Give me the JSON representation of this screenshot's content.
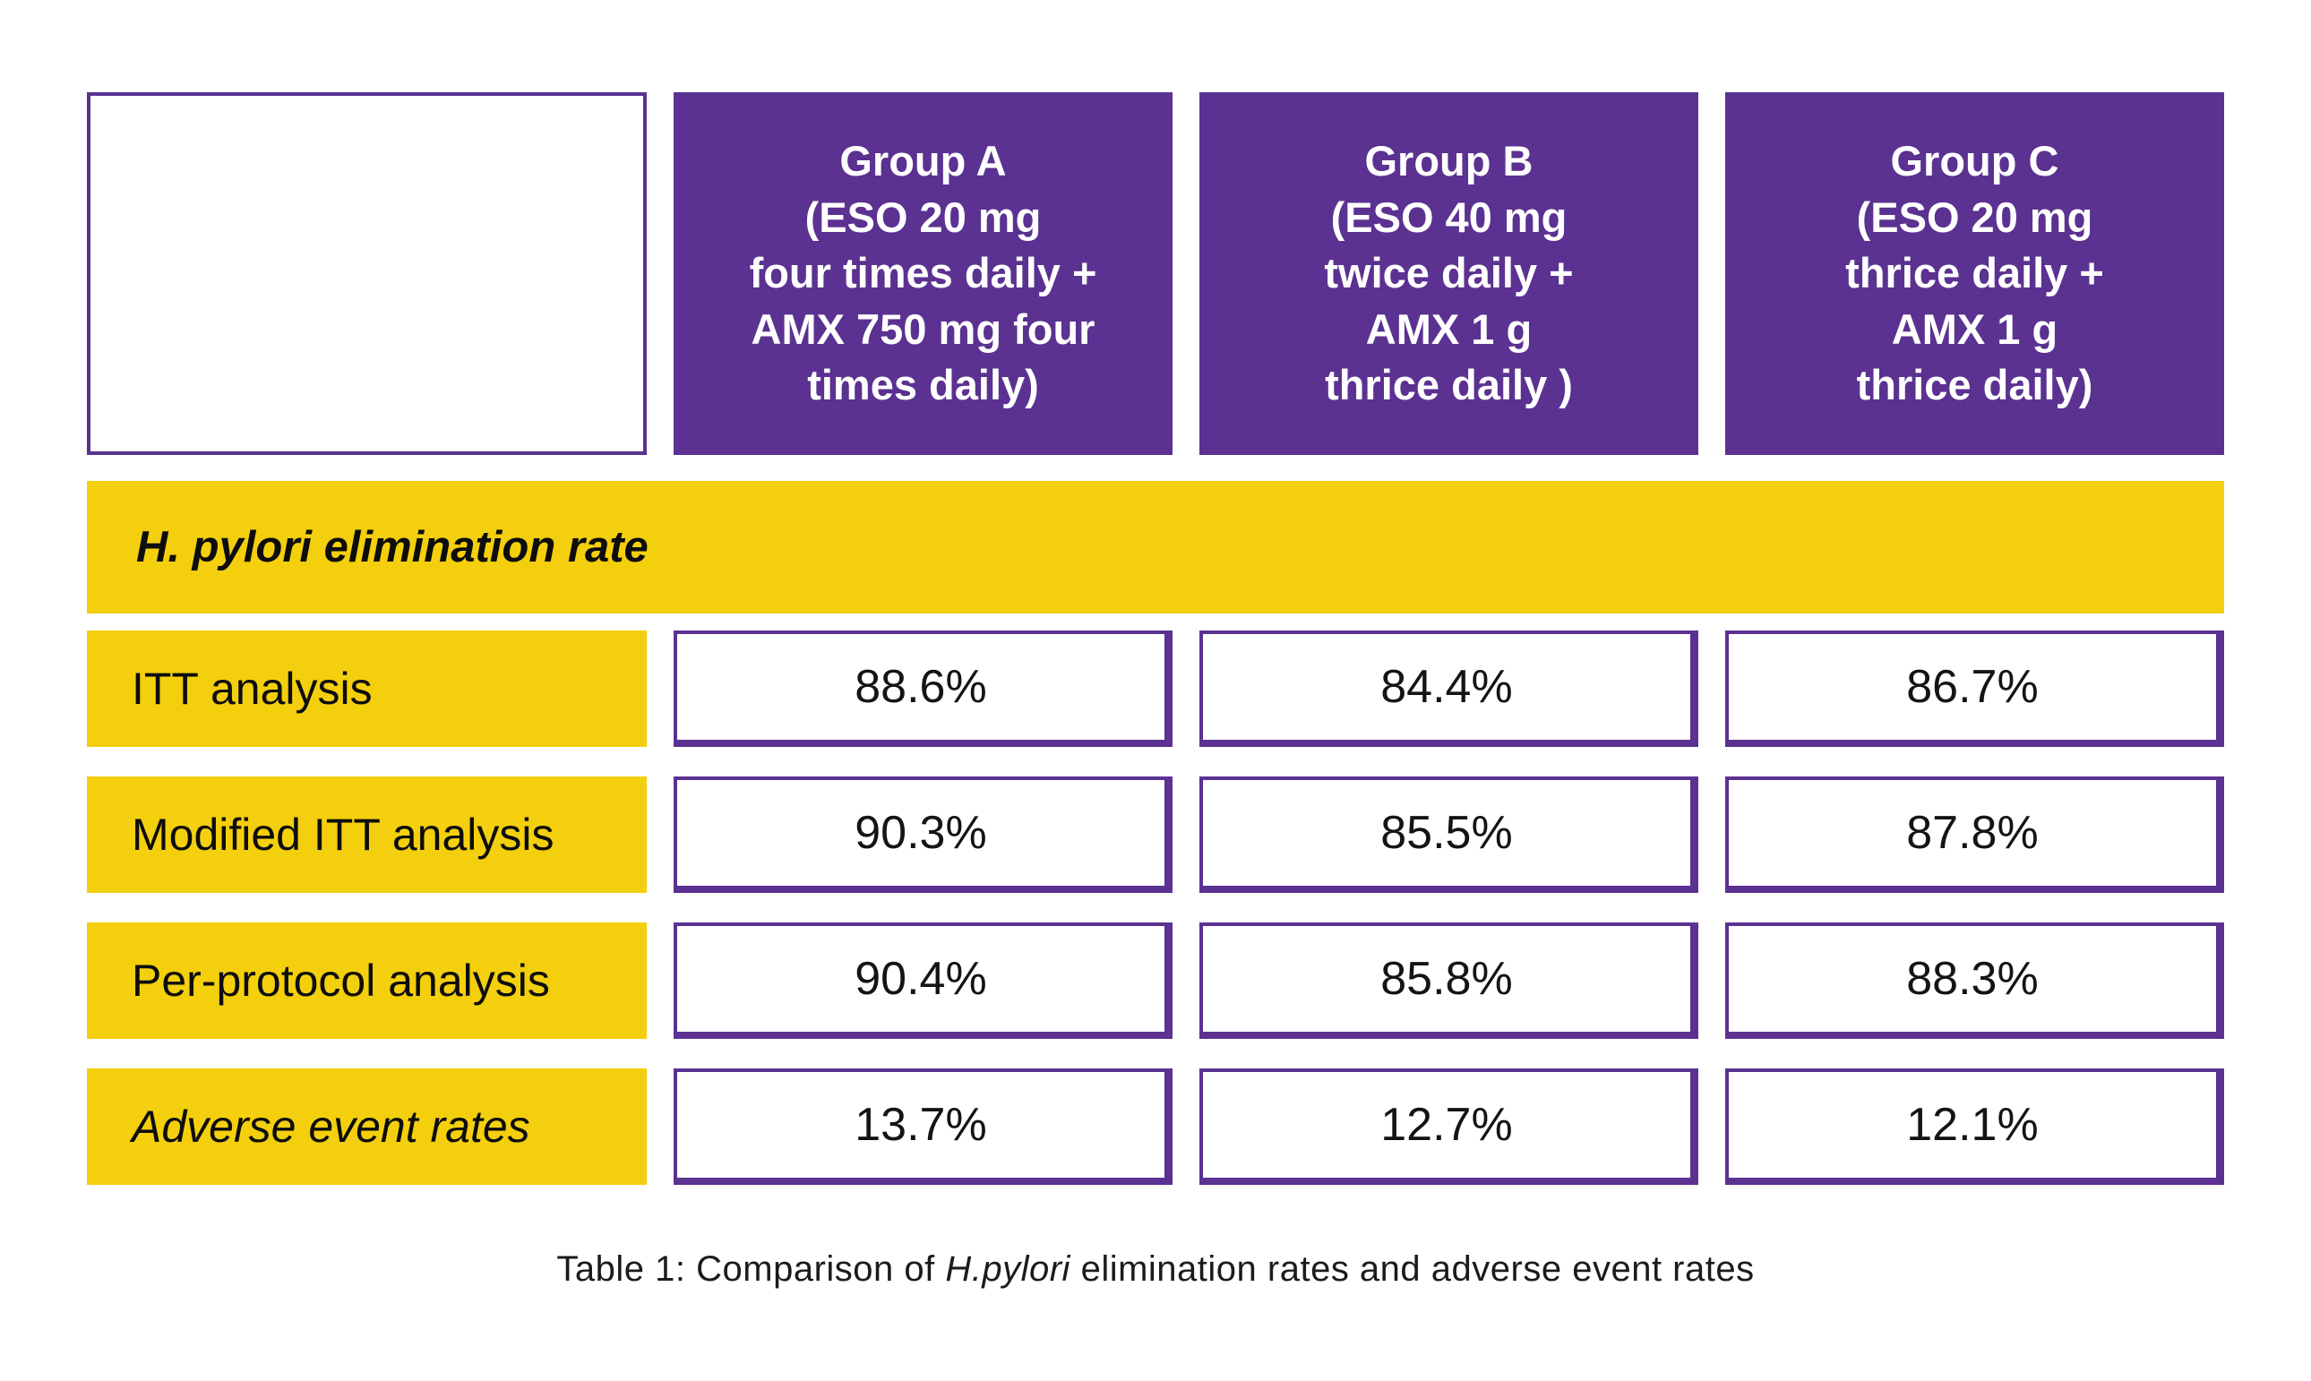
{
  "colors": {
    "purple": "#5B3191",
    "yellow": "#F4CF0D"
  },
  "header": {
    "groups": [
      {
        "title": "Group A\n(ESO 20 mg\nfour times daily +\nAMX 750 mg four\ntimes daily)"
      },
      {
        "title": "Group B\n(ESO 40 mg\ntwice daily +\nAMX 1 g\nthrice daily )"
      },
      {
        "title": "Group C\n(ESO 20 mg\nthrice daily +\nAMX 1 g\nthrice daily)"
      }
    ]
  },
  "section": {
    "title": "H. pylori elimination rate"
  },
  "rows": [
    {
      "label": "ITT analysis",
      "values": [
        "88.6%",
        "84.4%",
        "86.7%"
      ]
    },
    {
      "label": "Modified ITT analysis",
      "values": [
        "90.3%",
        "85.5%",
        "87.8%"
      ]
    },
    {
      "label": "Per-protocol analysis",
      "values": [
        "90.4%",
        "85.8%",
        "88.3%"
      ]
    },
    {
      "label": "Adverse event rates",
      "values": [
        "13.7%",
        "12.7%",
        "12.1%"
      ]
    }
  ],
  "caption": {
    "prefix": "Table 1: Comparison of ",
    "species": "H.pylori",
    "suffix": " elimination rates and adverse event rates"
  },
  "chart_data": {
    "type": "table",
    "title": "Table 1: Comparison of H.pylori elimination rates and adverse event rates",
    "columns": [
      "",
      "Group A (ESO 20 mg four times daily + AMX 750 mg four times daily)",
      "Group B (ESO 40 mg twice daily + AMX 1 g thrice daily )",
      "Group C (ESO 20 mg thrice daily + AMX 1 g thrice daily)"
    ],
    "section_header": "H. pylori elimination rate",
    "rows": [
      {
        "label": "ITT analysis",
        "values_pct": [
          88.6,
          84.4,
          86.7
        ]
      },
      {
        "label": "Modified ITT analysis",
        "values_pct": [
          90.3,
          85.5,
          87.8
        ]
      },
      {
        "label": "Per-protocol analysis",
        "values_pct": [
          90.4,
          85.8,
          88.3
        ]
      },
      {
        "label": "Adverse event rates",
        "values_pct": [
          13.7,
          12.7,
          12.1
        ]
      }
    ]
  }
}
